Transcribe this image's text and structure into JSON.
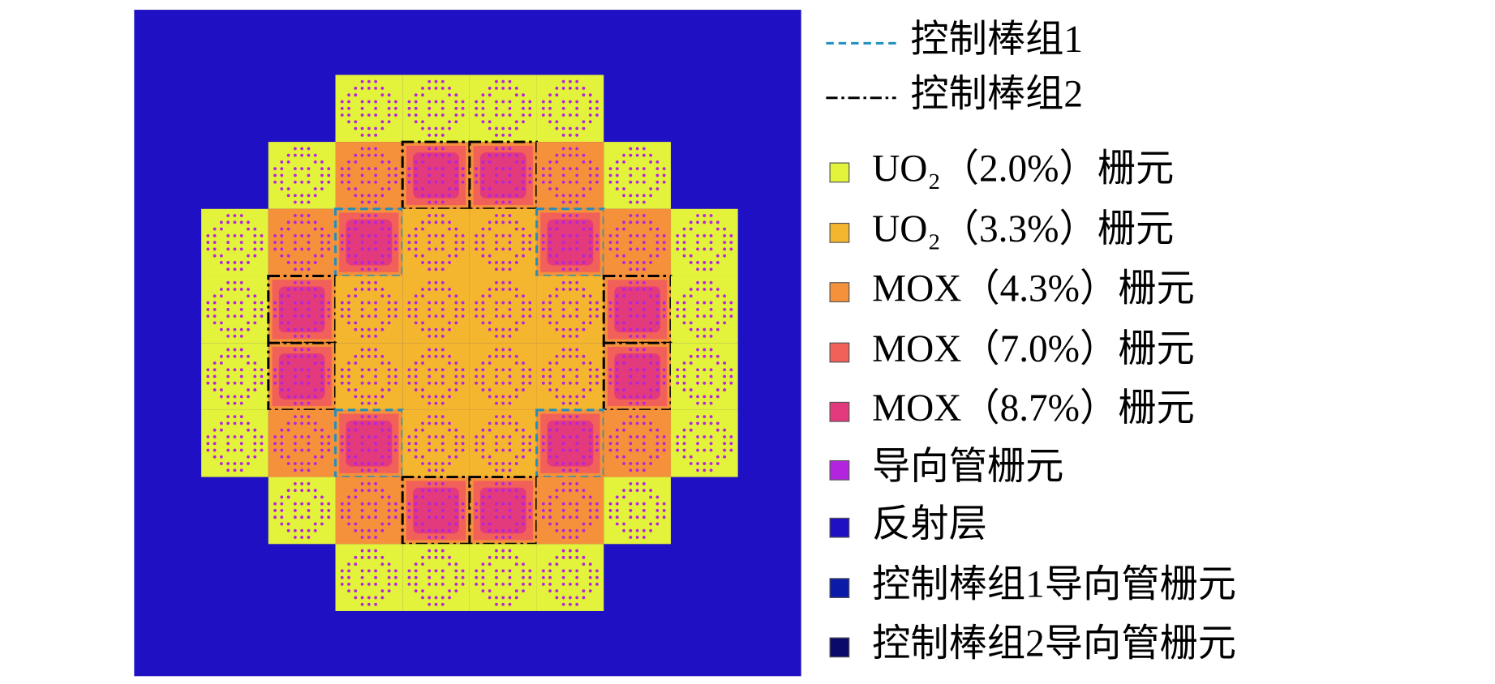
{
  "legend": {
    "items": [
      {
        "label": "控制棒组1",
        "kind": "line",
        "color": "#1f8fc0",
        "dash": "8 5"
      },
      {
        "label": "控制棒组2",
        "kind": "line",
        "color": "#000000",
        "dash": "12 4 3 4"
      },
      {
        "label": "UO₂（2.0%）栅元",
        "kind": "box",
        "color": "#e3f23a"
      },
      {
        "label": "UO₂（3.3%）栅元",
        "kind": "box",
        "color": "#f4b62e"
      },
      {
        "label": "MOX（4.3%）栅元",
        "kind": "box",
        "color": "#f5913a"
      },
      {
        "label": "MOX（7.0%）栅元",
        "kind": "box",
        "color": "#f2605a"
      },
      {
        "label": "MOX（8.7%）栅元",
        "kind": "box",
        "color": "#e23a7c"
      },
      {
        "label": "导向管栅元",
        "kind": "box",
        "color": "#b224de"
      },
      {
        "label": "反射层",
        "kind": "box",
        "color": "#2010c4"
      },
      {
        "label": "控制棒组1导向管栅元",
        "kind": "box",
        "color": "#0c1aa8"
      },
      {
        "label": "控制棒组2导向管栅元",
        "kind": "box",
        "color": "#0a0a6a"
      }
    ]
  }
}
